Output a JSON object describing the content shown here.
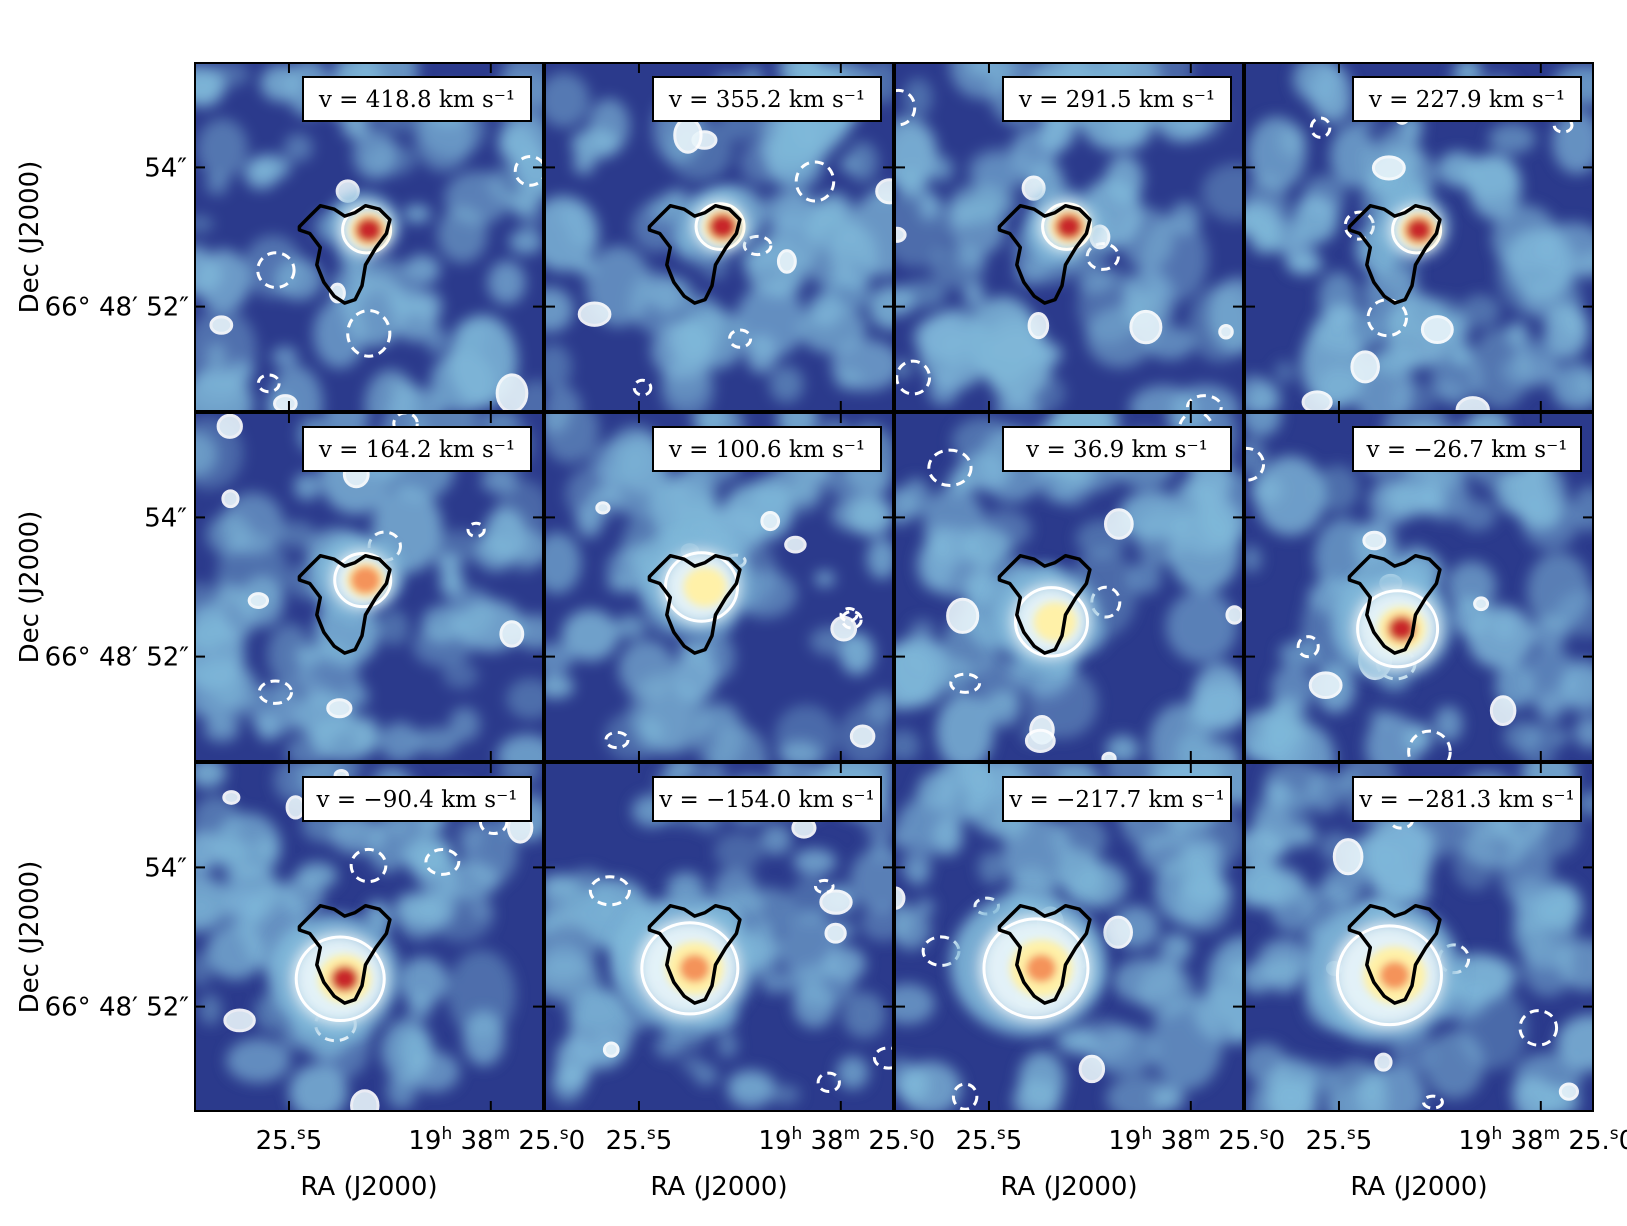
{
  "chart_data": {
    "type": "heatmap",
    "layout": "channel map grid, 3 rows x 4 columns",
    "colormap": "blue-white-yellow-red (RdYlBu reversed)",
    "colors": {
      "background": "#2b3a8c",
      "mid_blue": "#7fb8d9",
      "pale": "#e8f4fa",
      "yellow": "#fff1a8",
      "orange": "#f4935a",
      "red": "#c8282a",
      "contour_positive": "#ffffff",
      "contour_reference": "#000000"
    },
    "xlabel": "RA (J2000)",
    "ylabel": "Dec (J2000)",
    "x_ticks": [
      {
        "pre": "25.",
        "sup": "s",
        "post": "5"
      },
      {
        "pre": "19",
        "sup": "h",
        "post": " 38",
        "sup2": "m",
        "post2": " 25.",
        "sup3": "s",
        "post3": "0"
      }
    ],
    "y_ticks": [
      "54″",
      "66° 48′ 52″"
    ],
    "units": "km s⁻¹",
    "panels": [
      {
        "velocity": "418.8",
        "label": "v = 418.8 km s⁻¹",
        "peak": [
          0.5,
          0.48
        ],
        "peak_level": 0.9,
        "extent": 0.6
      },
      {
        "velocity": "355.2",
        "label": "v = 355.2 km s⁻¹",
        "peak": [
          0.51,
          0.47
        ],
        "peak_level": 1.0,
        "extent": 0.6
      },
      {
        "velocity": "291.5",
        "label": "v = 291.5 km s⁻¹",
        "peak": [
          0.5,
          0.47
        ],
        "peak_level": 0.85,
        "extent": 0.6
      },
      {
        "velocity": "227.9",
        "label": "v = 227.9 km s⁻¹",
        "peak": [
          0.5,
          0.48
        ],
        "peak_level": 0.8,
        "extent": 0.6
      },
      {
        "velocity": "164.2",
        "label": "v = 164.2 km s⁻¹",
        "peak": [
          0.49,
          0.48
        ],
        "peak_level": 0.75,
        "extent": 0.7
      },
      {
        "velocity": "100.6",
        "label": "v = 100.6 km s⁻¹",
        "peak": [
          0.46,
          0.5
        ],
        "peak_level": 0.45,
        "extent": 0.9
      },
      {
        "velocity": "36.9",
        "label": "v = 36.9 km s⁻¹",
        "peak": [
          0.46,
          0.6
        ],
        "peak_level": 0.5,
        "extent": 0.9
      },
      {
        "velocity": "−26.7",
        "label": "v = −26.7 km s⁻¹",
        "peak": [
          0.45,
          0.62
        ],
        "peak_level": 0.85,
        "extent": 1.0
      },
      {
        "velocity": "−90.4",
        "label": "v = −90.4 km s⁻¹",
        "peak": [
          0.43,
          0.62
        ],
        "peak_level": 0.9,
        "extent": 1.1
      },
      {
        "velocity": "−154.0",
        "label": "v = −154.0 km s⁻¹",
        "peak": [
          0.43,
          0.59
        ],
        "peak_level": 0.7,
        "extent": 1.2
      },
      {
        "velocity": "−217.7",
        "label": "v = −217.7 km s⁻¹",
        "peak": [
          0.42,
          0.59
        ],
        "peak_level": 0.7,
        "extent": 1.3
      },
      {
        "velocity": "−281.3",
        "label": "v = −281.3 km s⁻¹",
        "peak": [
          0.43,
          0.61
        ],
        "peak_level": 0.6,
        "extent": 1.3
      }
    ]
  }
}
